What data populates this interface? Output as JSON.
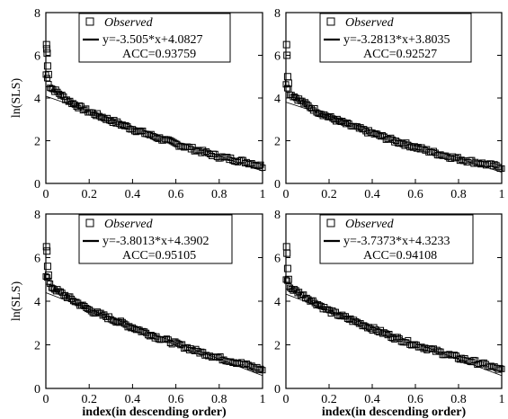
{
  "chart_data": [
    {
      "type": "scatter",
      "panel": "top-left",
      "xlabel": "",
      "ylabel": "ln(SLS)",
      "xlim": [
        0,
        1
      ],
      "ylim": [
        0,
        8
      ],
      "xticks": [
        "0",
        "0.2",
        "0.4",
        "0.6",
        "0.8",
        "1"
      ],
      "yticks": [
        "0",
        "2",
        "4",
        "6",
        "8"
      ],
      "legend": {
        "observed": "Observed",
        "fit": "y=-3.505*x+4.0827",
        "acc": "ACC=0.93759"
      },
      "fit": {
        "slope": -3.505,
        "intercept": 4.0827
      },
      "head_points": [
        [
          0.003,
          6.5
        ],
        [
          0.004,
          6.3
        ],
        [
          0.006,
          6.1
        ],
        [
          0.008,
          5.5
        ],
        [
          0.012,
          5.1
        ]
      ],
      "series": [
        {
          "name": "Observed",
          "x": [
            0,
            0.02,
            0.05,
            0.1,
            0.15,
            0.2,
            0.3,
            0.4,
            0.5,
            0.6,
            0.7,
            0.8,
            0.9,
            0.95,
            1.0
          ],
          "y": [
            5.1,
            4.5,
            4.3,
            3.9,
            3.6,
            3.35,
            2.95,
            2.55,
            2.2,
            1.85,
            1.55,
            1.25,
            1.05,
            0.95,
            0.8
          ]
        }
      ]
    },
    {
      "type": "scatter",
      "panel": "top-right",
      "xlabel": "",
      "ylabel": "",
      "xlim": [
        0,
        1
      ],
      "ylim": [
        0,
        8
      ],
      "xticks": [
        "0",
        "0.2",
        "0.4",
        "0.6",
        "0.8",
        "1"
      ],
      "yticks": [
        "0",
        "2",
        "4",
        "6",
        "8"
      ],
      "legend": {
        "observed": "Observed",
        "fit": "y=-3.2813*x+3.8035",
        "acc": "ACC=0.92527"
      },
      "fit": {
        "slope": -3.2813,
        "intercept": 3.8035
      },
      "head_points": [
        [
          0.003,
          6.5
        ],
        [
          0.005,
          6.0
        ],
        [
          0.008,
          5.0
        ],
        [
          0.012,
          4.7
        ]
      ],
      "series": [
        {
          "name": "Observed",
          "x": [
            0,
            0.02,
            0.05,
            0.1,
            0.15,
            0.2,
            0.3,
            0.4,
            0.5,
            0.6,
            0.7,
            0.8,
            0.9,
            0.95,
            1.0
          ],
          "y": [
            4.7,
            4.2,
            4.0,
            3.65,
            3.35,
            3.1,
            2.7,
            2.35,
            2.0,
            1.7,
            1.4,
            1.15,
            0.95,
            0.85,
            0.75
          ]
        }
      ]
    },
    {
      "type": "scatter",
      "panel": "bottom-left",
      "xlabel": "index(in descending order)",
      "ylabel": "ln(SLS)",
      "xlim": [
        0,
        1
      ],
      "ylim": [
        0,
        8
      ],
      "xticks": [
        "0",
        "0.2",
        "0.4",
        "0.6",
        "0.8",
        "1"
      ],
      "yticks": [
        "0",
        "2",
        "4",
        "6",
        "8"
      ],
      "legend": {
        "observed": "Observed",
        "fit": "y=-3.8013*x+4.3902",
        "acc": "ACC=0.95105"
      },
      "fit": {
        "slope": -3.8013,
        "intercept": 4.3902
      },
      "head_points": [
        [
          0.003,
          6.5
        ],
        [
          0.005,
          6.3
        ],
        [
          0.008,
          5.6
        ],
        [
          0.012,
          5.2
        ]
      ],
      "series": [
        {
          "name": "Observed",
          "x": [
            0,
            0.02,
            0.05,
            0.1,
            0.15,
            0.2,
            0.3,
            0.4,
            0.5,
            0.6,
            0.7,
            0.8,
            0.9,
            0.95,
            1.0
          ],
          "y": [
            5.2,
            4.7,
            4.5,
            4.2,
            3.9,
            3.6,
            3.2,
            2.8,
            2.4,
            2.05,
            1.7,
            1.4,
            1.15,
            1.0,
            0.85
          ]
        }
      ]
    },
    {
      "type": "scatter",
      "panel": "bottom-right",
      "xlabel": "index(in descending order)",
      "ylabel": "",
      "xlim": [
        0,
        1
      ],
      "ylim": [
        0,
        8
      ],
      "xticks": [
        "0",
        "0.2",
        "0.4",
        "0.6",
        "0.8",
        "1"
      ],
      "yticks": [
        "0",
        "2",
        "4",
        "6",
        "8"
      ],
      "legend": {
        "observed": "Observed",
        "fit": "y=-3.7373*x+4.3233",
        "acc": "ACC=0.94108"
      },
      "fit": {
        "slope": -3.7373,
        "intercept": 4.3233
      },
      "head_points": [
        [
          0.003,
          6.5
        ],
        [
          0.005,
          6.2
        ],
        [
          0.008,
          5.5
        ],
        [
          0.012,
          5.0
        ]
      ],
      "series": [
        {
          "name": "Observed",
          "x": [
            0,
            0.02,
            0.05,
            0.1,
            0.15,
            0.2,
            0.3,
            0.4,
            0.5,
            0.6,
            0.7,
            0.8,
            0.9,
            0.95,
            1.0
          ],
          "y": [
            5.0,
            4.6,
            4.45,
            4.15,
            3.85,
            3.55,
            3.15,
            2.75,
            2.35,
            2.0,
            1.7,
            1.4,
            1.15,
            1.0,
            0.85
          ]
        }
      ]
    }
  ]
}
